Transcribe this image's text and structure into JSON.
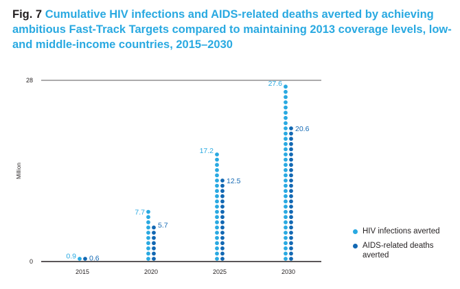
{
  "title": {
    "fig_label": "Fig. 7",
    "text": "Cumulative HIV infections and AIDS-related deaths averted by achieving ambitious Fast-Track Targets compared to maintaining 2013 coverage levels, low- and middle-income countries, 2015–2030"
  },
  "chart_data": {
    "type": "bar",
    "style": "dot-column",
    "categories": [
      "2015",
      "2020",
      "2025",
      "2030"
    ],
    "series": [
      {
        "name": "HIV infections averted",
        "values": [
          0.9,
          7.7,
          17.2,
          27.6
        ],
        "labels": [
          "0.9",
          "7.7",
          "17.2",
          "27.6"
        ],
        "color": "#29a9e1"
      },
      {
        "name": "AIDS-related deaths averted",
        "values": [
          0.6,
          5.7,
          12.5,
          20.6
        ],
        "labels": [
          "0.6",
          "5.7",
          "12.5",
          "20.6"
        ],
        "color": "#1268b3"
      }
    ],
    "ylabel": "Million",
    "ylim": [
      0,
      28
    ],
    "yticks": [
      "0",
      "28"
    ],
    "legend_position": "right"
  }
}
